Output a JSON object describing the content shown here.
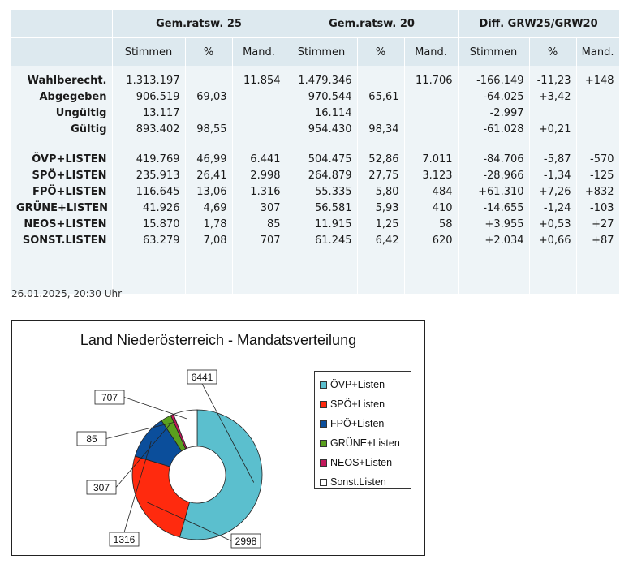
{
  "table": {
    "groups": [
      "Gem.ratsw. 25",
      "Gem.ratsw. 20",
      "Diff. GRW25/GRW20"
    ],
    "subheaders": [
      "Stimmen",
      "%",
      "Mand.",
      "Stimmen",
      "%",
      "Mand.",
      "Stimmen",
      "%",
      "Mand."
    ],
    "summary_rows": [
      {
        "label": "Wahlberecht.",
        "cells": [
          "1.313.197",
          "",
          "11.854",
          "1.479.346",
          "",
          "11.706",
          "-166.149",
          "-11,23",
          "+148"
        ]
      },
      {
        "label": "Abgegeben",
        "cells": [
          "906.519",
          "69,03",
          "",
          "970.544",
          "65,61",
          "",
          "-64.025",
          "+3,42",
          ""
        ]
      },
      {
        "label": "Ungültig",
        "cells": [
          "13.117",
          "",
          "",
          "16.114",
          "",
          "",
          "-2.997",
          "",
          ""
        ]
      },
      {
        "label": "Gültig",
        "cells": [
          "893.402",
          "98,55",
          "",
          "954.430",
          "98,34",
          "",
          "-61.028",
          "+0,21",
          ""
        ]
      }
    ],
    "party_rows": [
      {
        "label": "ÖVP+LISTEN",
        "cells": [
          "419.769",
          "46,99",
          "6.441",
          "504.475",
          "52,86",
          "7.011",
          "-84.706",
          "-5,87",
          "-570"
        ]
      },
      {
        "label": "SPÖ+LISTEN",
        "cells": [
          "235.913",
          "26,41",
          "2.998",
          "264.879",
          "27,75",
          "3.123",
          "-28.966",
          "-1,34",
          "-125"
        ]
      },
      {
        "label": "FPÖ+LISTEN",
        "cells": [
          "116.645",
          "13,06",
          "1.316",
          "55.335",
          "5,80",
          "484",
          "+61.310",
          "+7,26",
          "+832"
        ]
      },
      {
        "label": "GRÜNE+LISTEN",
        "cells": [
          "41.926",
          "4,69",
          "307",
          "56.581",
          "5,93",
          "410",
          "-14.655",
          "-1,24",
          "-103"
        ]
      },
      {
        "label": "NEOS+LISTEN",
        "cells": [
          "15.870",
          "1,78",
          "85",
          "11.915",
          "1,25",
          "58",
          "+3.955",
          "+0,53",
          "+27"
        ]
      },
      {
        "label": "SONST.LISTEN",
        "cells": [
          "63.279",
          "7,08",
          "707",
          "61.245",
          "6,42",
          "620",
          "+2.034",
          "+0,66",
          "+87"
        ]
      }
    ]
  },
  "timestamp": "26.01.2025, 20:30 Uhr",
  "chart_data": {
    "type": "pie",
    "title": "Land Niederösterreich - Mandatsverteilung",
    "donut": true,
    "legend_position": "right",
    "categories": [
      "ÖVP+Listen",
      "SPÖ+Listen",
      "FPÖ+Listen",
      "GRÜNE+Listen",
      "NEOS+Listen",
      "Sonst.Listen"
    ],
    "values": [
      6441,
      2998,
      1316,
      307,
      85,
      707
    ],
    "colors": [
      "#5bbfce",
      "#ff2a0e",
      "#0b4e9b",
      "#5aa01e",
      "#c2185b",
      "#ffffff"
    ],
    "data_labels": [
      "6441",
      "2998",
      "1316",
      "307",
      "85",
      "707"
    ]
  }
}
